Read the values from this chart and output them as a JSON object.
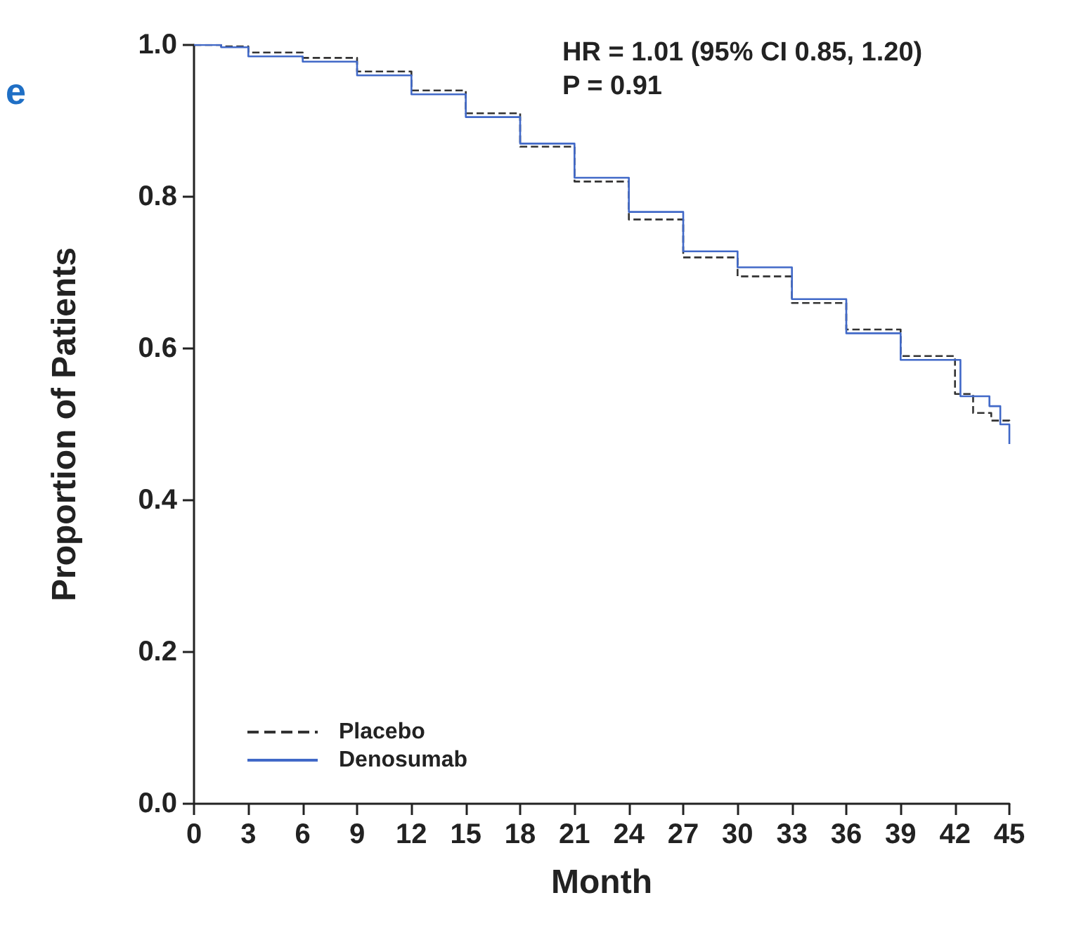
{
  "chart_data": {
    "type": "step",
    "xlabel": "Month",
    "ylabel": "Proportion of Patients",
    "annotations": [
      "e",
      "HR = 1.01 (95% CI 0.85, 1.20)",
      "P = 0.91"
    ],
    "xlim": [
      0,
      45
    ],
    "xticks": [
      0,
      3,
      6,
      9,
      12,
      15,
      18,
      21,
      24,
      27,
      30,
      33,
      36,
      39,
      42,
      45
    ],
    "ylim": [
      0,
      1
    ],
    "yticks": [
      {
        "value": 0,
        "label": "0.0"
      },
      {
        "value": 0.2,
        "label": "0.2"
      },
      {
        "value": 0.4,
        "label": "0.4"
      },
      {
        "value": 0.6,
        "label": "0.6"
      },
      {
        "value": 0.8,
        "label": "0.8"
      },
      {
        "value": 1,
        "label": "1.0"
      }
    ],
    "grid": false,
    "legend": "bottom left",
    "marker": "none",
    "series": [
      {
        "name": "Placebo",
        "color": "#333333",
        "line_style": "dashed",
        "x": [
          0,
          1.5,
          3,
          6,
          9,
          12,
          15,
          18,
          21,
          24,
          27,
          30,
          33,
          36,
          39,
          42,
          43,
          44,
          45
        ],
        "values": [
          1.0,
          0.998,
          0.99,
          0.983,
          0.965,
          0.94,
          0.91,
          0.866,
          0.82,
          0.77,
          0.72,
          0.695,
          0.66,
          0.625,
          0.59,
          0.54,
          0.515,
          0.505,
          0.5
        ]
      },
      {
        "name": "Denosumab",
        "color": "#4169c8",
        "line_style": "solid",
        "x": [
          0,
          1.5,
          3,
          6,
          9,
          12,
          15,
          18,
          21,
          24,
          27,
          30,
          33,
          36,
          39,
          42.3,
          43.9,
          44.5,
          45
        ],
        "values": [
          1.0,
          0.997,
          0.985,
          0.978,
          0.96,
          0.935,
          0.905,
          0.87,
          0.825,
          0.78,
          0.728,
          0.707,
          0.665,
          0.62,
          0.585,
          0.537,
          0.524,
          0.5,
          0.474
        ]
      }
    ]
  }
}
